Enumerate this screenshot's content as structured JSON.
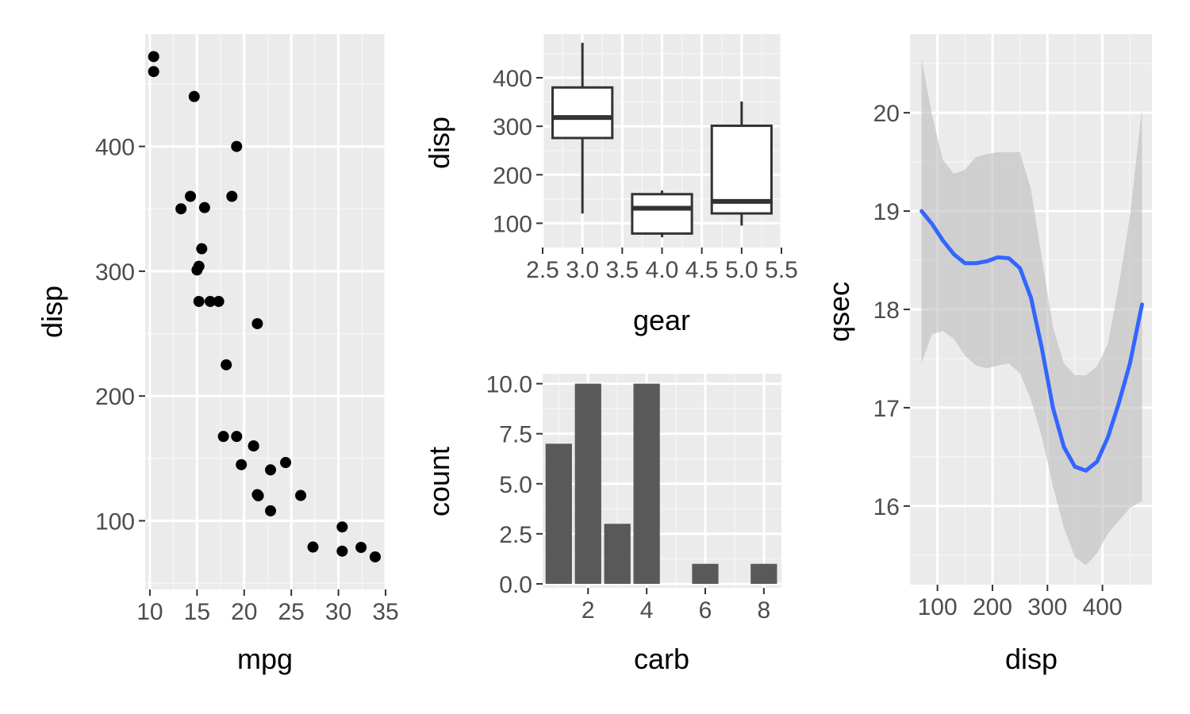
{
  "colors": {
    "panel_bg": "#ebebeb",
    "grid_major": "#ffffff",
    "grid_minor": "#f5f5f5",
    "tick_text": "#4d4d4d",
    "axis_title": "#000000",
    "point": "#000000",
    "box_line": "#333333",
    "bar_fill": "#595959",
    "smooth_line": "#3366ff",
    "ribbon": "#bdbdbd"
  },
  "chart_data": [
    {
      "type": "scatter",
      "xlabel": "mpg",
      "ylabel": "disp",
      "xlim": [
        9.5,
        35
      ],
      "ylim": [
        45,
        490
      ],
      "xticks": [
        10,
        15,
        20,
        25,
        30,
        35
      ],
      "yticks": [
        100,
        200,
        300,
        400
      ],
      "grid": true,
      "points": [
        {
          "x": 21.0,
          "y": 160
        },
        {
          "x": 21.0,
          "y": 160
        },
        {
          "x": 22.8,
          "y": 108
        },
        {
          "x": 21.4,
          "y": 258
        },
        {
          "x": 18.7,
          "y": 360
        },
        {
          "x": 18.1,
          "y": 225
        },
        {
          "x": 14.3,
          "y": 360
        },
        {
          "x": 24.4,
          "y": 146.7
        },
        {
          "x": 22.8,
          "y": 140.8
        },
        {
          "x": 19.2,
          "y": 167.6
        },
        {
          "x": 17.8,
          "y": 167.6
        },
        {
          "x": 16.4,
          "y": 275.8
        },
        {
          "x": 17.3,
          "y": 275.8
        },
        {
          "x": 15.2,
          "y": 275.8
        },
        {
          "x": 10.4,
          "y": 472
        },
        {
          "x": 10.4,
          "y": 460
        },
        {
          "x": 14.7,
          "y": 440
        },
        {
          "x": 32.4,
          "y": 78.7
        },
        {
          "x": 30.4,
          "y": 75.7
        },
        {
          "x": 33.9,
          "y": 71.1
        },
        {
          "x": 21.5,
          "y": 120.1
        },
        {
          "x": 15.5,
          "y": 318
        },
        {
          "x": 15.2,
          "y": 304
        },
        {
          "x": 13.3,
          "y": 350
        },
        {
          "x": 19.2,
          "y": 400
        },
        {
          "x": 27.3,
          "y": 79
        },
        {
          "x": 26.0,
          "y": 120.3
        },
        {
          "x": 30.4,
          "y": 95.1
        },
        {
          "x": 15.8,
          "y": 351
        },
        {
          "x": 19.7,
          "y": 145
        },
        {
          "x": 15.0,
          "y": 301
        },
        {
          "x": 21.4,
          "y": 121
        }
      ]
    },
    {
      "type": "box",
      "xlabel": "gear",
      "ylabel": "disp",
      "xlim": [
        2.5,
        5.5
      ],
      "ylim": [
        50,
        490
      ],
      "xticks": [
        "2.5",
        "3.0",
        "3.5",
        "4.0",
        "4.5",
        "5.0",
        "5.5"
      ],
      "yticks": [
        100,
        200,
        300,
        400
      ],
      "grid": true,
      "boxes": [
        {
          "x": 3,
          "min": 120.1,
          "q1": 275.8,
          "median": 318,
          "q3": 380,
          "max": 472
        },
        {
          "x": 4,
          "min": 71.1,
          "q1": 78.85,
          "median": 130.9,
          "q3": 160,
          "max": 167.6
        },
        {
          "x": 5,
          "min": 95.1,
          "q1": 120.3,
          "median": 145,
          "q3": 301,
          "max": 351
        }
      ]
    },
    {
      "type": "bar",
      "xlabel": "carb",
      "ylabel": "count",
      "xlim": [
        0.45,
        8.6
      ],
      "ylim": [
        -0.2,
        10.5
      ],
      "xticks": [
        2,
        4,
        6,
        8
      ],
      "yticks": [
        "0.0",
        "2.5",
        "5.0",
        "7.5",
        "10.0"
      ],
      "grid": true,
      "categories": [
        1,
        2,
        3,
        4,
        6,
        8
      ],
      "values": [
        7,
        10,
        3,
        10,
        1,
        1
      ]
    },
    {
      "type": "line",
      "xlabel": "disp",
      "ylabel": "qsec",
      "xlim": [
        50,
        490
      ],
      "ylim": [
        15.2,
        20.8
      ],
      "xticks": [
        100,
        200,
        300,
        400
      ],
      "yticks": [
        16,
        17,
        18,
        19,
        20
      ],
      "grid": true,
      "series": [
        {
          "x": [
            71.1,
            90,
            110,
            130,
            150,
            170,
            190,
            210,
            230,
            250,
            270,
            290,
            310,
            330,
            350,
            370,
            390,
            410,
            430,
            450,
            472
          ],
          "y": [
            19.0,
            18.87,
            18.7,
            18.56,
            18.47,
            18.47,
            18.49,
            18.53,
            18.52,
            18.42,
            18.12,
            17.6,
            17.0,
            16.6,
            16.4,
            16.36,
            16.45,
            16.7,
            17.05,
            17.45,
            18.05
          ],
          "lower": [
            17.45,
            17.75,
            17.78,
            17.7,
            17.53,
            17.43,
            17.4,
            17.43,
            17.45,
            17.35,
            17.08,
            16.7,
            16.2,
            15.78,
            15.48,
            15.4,
            15.52,
            15.72,
            15.85,
            15.98,
            16.05
          ],
          "upper": [
            20.55,
            19.98,
            19.52,
            19.38,
            19.42,
            19.55,
            19.58,
            19.6,
            19.6,
            19.6,
            19.22,
            18.52,
            17.82,
            17.45,
            17.33,
            17.33,
            17.42,
            17.65,
            18.25,
            18.95,
            20.05
          ]
        }
      ]
    }
  ]
}
